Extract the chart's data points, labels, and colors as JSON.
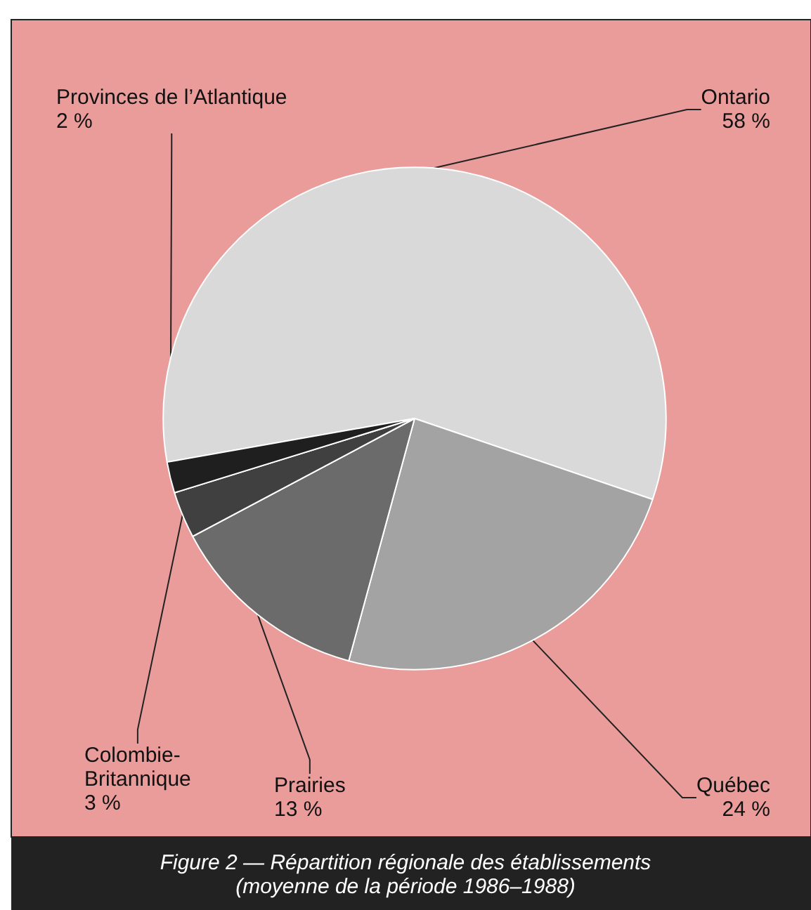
{
  "chart_data": {
    "type": "pie",
    "title": "Figure 2 — Répartition régionale des établissements",
    "subtitle": "(moyenne de la période 1986–1988)",
    "categories": [
      "Ontario",
      "Québec",
      "Prairies",
      "Colombie-\nBritannique",
      "Provinces de l’Atlantique"
    ],
    "values": [
      58,
      24,
      13,
      3,
      2
    ],
    "value_labels": [
      "58 %",
      "24 %",
      "13 %",
      "3 %",
      "2 %"
    ],
    "colors": [
      "#d9d9d9",
      "#a3a3a3",
      "#6b6b6b",
      "#404040",
      "#1f1f1f"
    ]
  }
}
